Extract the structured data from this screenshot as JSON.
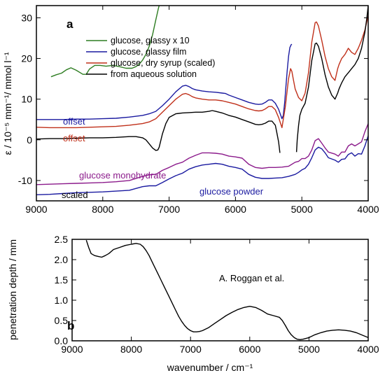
{
  "chart_data": [
    {
      "type": "line",
      "panel_label": "a",
      "ylabel": "ε  /  10⁻⁵ mm⁻¹/ mmol l⁻¹",
      "xlim": [
        9000,
        4000
      ],
      "ylim": [
        -15,
        33
      ],
      "x_ticks": [
        9000,
        8000,
        7000,
        6000,
        5000,
        4000
      ],
      "y_ticks": [
        -10,
        0,
        10,
        20,
        30
      ],
      "legend": {
        "placement": "top-left",
        "entries": [
          {
            "label": "glucose, glassy  x 10",
            "color": "#2e7d22"
          },
          {
            "label": "glucose, glassy film",
            "color": "#1a1aa0"
          },
          {
            "label": "glucose, dry syrup (scaled)",
            "color": "#c0301a"
          },
          {
            "label": "from aqueous solution",
            "color": "#000000"
          }
        ]
      },
      "annotations": [
        {
          "text": "offset",
          "color": "#1a1aa0"
        },
        {
          "text": "offset",
          "color": "#c0301a"
        },
        {
          "text": "glucose monohydrate",
          "color": "#8b1a8b"
        },
        {
          "text": "scaled",
          "color": "#000000"
        },
        {
          "text": "glucose powder",
          "color": "#1a1aa0"
        }
      ],
      "series": [
        {
          "name": "glucose, glassy  x 10",
          "color": "#2e7d22",
          "x": [
            8780,
            8700,
            8620,
            8550,
            8480,
            8400,
            8300,
            8250,
            8200,
            8120,
            8040,
            7950,
            7850,
            7750,
            7650,
            7560,
            7500,
            7450,
            7400,
            7350,
            7300,
            7250,
            7200,
            7160,
            7150
          ],
          "y": [
            15.5,
            16,
            16.4,
            17.2,
            17.7,
            17.1,
            16.1,
            16.1,
            17.4,
            18.3,
            18.3,
            18.1,
            18.3,
            18.0,
            17.6,
            17.6,
            18.0,
            18.6,
            19.6,
            21.0,
            23.0,
            25.8,
            29.5,
            32.4,
            33
          ]
        },
        {
          "name": "glucose, glassy film",
          "color": "#1a1aa0",
          "x": [
            9000,
            8800,
            8600,
            8400,
            8200,
            8000,
            7800,
            7600,
            7400,
            7300,
            7200,
            7100,
            7000,
            6900,
            6800,
            6750,
            6700,
            6650,
            6600,
            6500,
            6400,
            6300,
            6200,
            6150,
            6100,
            6000,
            5900,
            5800,
            5700,
            5650,
            5600,
            5550,
            5500,
            5450,
            5400,
            5350,
            5300,
            5280,
            5260,
            5240,
            5220,
            5200,
            5180,
            5160,
            5150
          ],
          "y": [
            5,
            5,
            5,
            5.1,
            5.1,
            5.2,
            5.3,
            5.6,
            6.0,
            6.4,
            7.0,
            8.4,
            10.0,
            11.8,
            13.2,
            13.4,
            13.1,
            12.6,
            12.3,
            12.0,
            11.8,
            11.7,
            11.5,
            11.4,
            11.0,
            10.4,
            9.8,
            9.2,
            8.8,
            8.7,
            8.8,
            9.2,
            9.8,
            9.8,
            9.0,
            7.5,
            5.2,
            6.0,
            9.0,
            13.0,
            17.0,
            20.5,
            22.7,
            23.4,
            23.5
          ]
        },
        {
          "name": "glucose, dry syrup (scaled)",
          "color": "#c0301a",
          "x": [
            9000,
            8800,
            8600,
            8400,
            8200,
            8000,
            7800,
            7600,
            7400,
            7300,
            7200,
            7100,
            7000,
            6900,
            6800,
            6750,
            6700,
            6650,
            6600,
            6500,
            6400,
            6300,
            6200,
            6100,
            6000,
            5900,
            5800,
            5700,
            5650,
            5600,
            5550,
            5500,
            5450,
            5400,
            5350,
            5300,
            5250,
            5200,
            5170,
            5150,
            5130,
            5100,
            5050,
            5000,
            4950,
            4900,
            4850,
            4800,
            4780,
            4750,
            4700,
            4650,
            4600,
            4550,
            4500,
            4460,
            4440,
            4400,
            4350,
            4300,
            4250,
            4200,
            4150,
            4100,
            4050,
            4000
          ],
          "y": [
            3.1,
            3.0,
            3.0,
            3.0,
            3.1,
            3.2,
            3.3,
            3.6,
            4.0,
            4.4,
            5.2,
            6.8,
            8.4,
            10.0,
            11.2,
            11.4,
            11.1,
            10.6,
            10.3,
            10.0,
            9.8,
            9.8,
            9.6,
            9.2,
            8.8,
            8.2,
            7.6,
            7.2,
            7.1,
            7.2,
            7.6,
            8.2,
            8.2,
            7.4,
            5.5,
            3.0,
            8.0,
            15.0,
            17.5,
            16.8,
            15.0,
            12.5,
            10.4,
            9.6,
            11.5,
            16.5,
            24.0,
            28.8,
            29.0,
            28.0,
            24.5,
            20.5,
            17.5,
            15.5,
            14.6,
            17.5,
            18.5,
            20.0,
            21.0,
            22.5,
            21.5,
            21.0,
            22.5,
            24.5,
            27.0,
            30.5
          ]
        },
        {
          "name": "from aqueous solution",
          "color": "#000000",
          "x": [
            9000,
            8800,
            8600,
            8400,
            8200,
            8000,
            7800,
            7600,
            7500,
            7400,
            7350,
            7300,
            7250,
            7200,
            7170,
            7150,
            7100,
            7050,
            7000,
            6900,
            6800,
            6700,
            6600,
            6500,
            6400,
            6350,
            6300,
            6200,
            6100,
            6000,
            5900,
            5800,
            5700,
            5650,
            5600,
            5550,
            5500,
            5450,
            5400,
            5380,
            5350,
            5330
          ],
          "y": [
            0.2,
            0.3,
            0.3,
            0.4,
            0.5,
            0.5,
            0.6,
            0.8,
            0.8,
            0.5,
            0.0,
            -1.0,
            -2.0,
            -2.6,
            -2.5,
            -1.8,
            1.5,
            4.0,
            5.5,
            6.4,
            6.6,
            6.7,
            6.8,
            6.8,
            7.0,
            7.2,
            7.0,
            6.6,
            6.0,
            5.6,
            5.0,
            4.4,
            3.8,
            3.7,
            3.8,
            4.1,
            4.6,
            4.6,
            3.6,
            2.0,
            -0.5,
            -3.2
          ]
        },
        {
          "name": "from aqueous solution",
          "color": "#000000",
          "x": [
            5080,
            5070,
            5050,
            5030,
            5000,
            4950,
            4900,
            4850,
            4800,
            4780,
            4750,
            4700,
            4650,
            4600,
            4550,
            4500,
            4460,
            4440,
            4400,
            4350,
            4300,
            4250,
            4200,
            4150,
            4100,
            4050,
            4020,
            4000
          ],
          "y": [
            -3.0,
            0.0,
            3.5,
            6.0,
            7.5,
            9.0,
            13.0,
            19.5,
            23.6,
            23.8,
            23.0,
            20.0,
            16.0,
            13.0,
            11.0,
            10.0,
            11.5,
            12.5,
            14.0,
            15.5,
            16.5,
            17.5,
            18.5,
            20.0,
            22.5,
            26.5,
            30.0,
            33.0
          ]
        },
        {
          "name": "glucose monohydrate",
          "color": "#8b1a8b",
          "x": [
            9000,
            8800,
            8600,
            8400,
            8200,
            8000,
            7800,
            7600,
            7400,
            7300,
            7200,
            7100,
            7000,
            6900,
            6800,
            6700,
            6600,
            6500,
            6400,
            6300,
            6200,
            6100,
            6000,
            5900,
            5800,
            5700,
            5600,
            5500,
            5400,
            5300,
            5200,
            5100,
            5050,
            5000,
            4950,
            4900,
            4850,
            4800,
            4750,
            4700,
            4650,
            4600,
            4500,
            4450,
            4400,
            4350,
            4300,
            4250,
            4200,
            4150,
            4100,
            4050,
            4000
          ],
          "y": [
            -11.0,
            -10.9,
            -10.8,
            -10.7,
            -10.6,
            -10.5,
            -10.3,
            -10.0,
            -9.0,
            -8.6,
            -8.5,
            -7.5,
            -6.8,
            -6.0,
            -5.5,
            -4.5,
            -3.8,
            -3.2,
            -3.2,
            -3.3,
            -3.5,
            -4.0,
            -4.2,
            -4.5,
            -6.0,
            -6.8,
            -7.0,
            -6.8,
            -6.8,
            -6.7,
            -6.5,
            -5.5,
            -5.3,
            -4.6,
            -4.6,
            -4.0,
            -2.5,
            -0.2,
            0.3,
            -0.8,
            -2.0,
            -3.0,
            -3.5,
            -4.0,
            -3.0,
            -3.0,
            -1.5,
            -1.0,
            -1.5,
            -1.0,
            -0.5,
            2.0,
            4.0
          ]
        },
        {
          "name": "glucose powder",
          "color": "#1a1aa0",
          "x": [
            9000,
            8800,
            8600,
            8400,
            8200,
            8000,
            7800,
            7600,
            7400,
            7300,
            7200,
            7100,
            7000,
            6900,
            6800,
            6700,
            6600,
            6500,
            6400,
            6300,
            6200,
            6100,
            6000,
            5900,
            5800,
            5700,
            5600,
            5500,
            5400,
            5300,
            5200,
            5100,
            5050,
            5000,
            4950,
            4900,
            4850,
            4800,
            4750,
            4700,
            4650,
            4600,
            4500,
            4450,
            4400,
            4350,
            4300,
            4250,
            4200,
            4150,
            4100,
            4050,
            4000
          ],
          "y": [
            -13.5,
            -13.4,
            -13.2,
            -13.0,
            -12.9,
            -12.8,
            -12.6,
            -12.4,
            -11.5,
            -11.3,
            -11.3,
            -10.5,
            -9.6,
            -8.8,
            -8.2,
            -7.2,
            -6.6,
            -6.2,
            -6.0,
            -5.8,
            -6.0,
            -6.5,
            -6.8,
            -7.2,
            -8.5,
            -9.2,
            -9.5,
            -9.5,
            -9.4,
            -9.3,
            -9.0,
            -8.5,
            -8.0,
            -7.4,
            -7.0,
            -6.0,
            -4.4,
            -2.5,
            -1.8,
            -2.2,
            -3.2,
            -4.4,
            -5.0,
            -5.5,
            -4.8,
            -4.7,
            -3.6,
            -3.2,
            -4.0,
            -3.4,
            -3.5,
            -1.5,
            1.0
          ]
        }
      ]
    },
    {
      "type": "line",
      "panel_label": "b",
      "title": "",
      "annotation": "A. Roggan et al.",
      "xlabel": "wavenumber  /  cm⁻¹",
      "ylabel": "penetration depth / mm",
      "xlim": [
        9000,
        4000
      ],
      "ylim": [
        0,
        2.5
      ],
      "x_ticks": [
        9000,
        8000,
        7000,
        6000,
        5000,
        4000
      ],
      "y_ticks": [
        0.0,
        0.5,
        1.0,
        1.5,
        2.0,
        2.5
      ],
      "series": [
        {
          "name": "",
          "color": "#000000",
          "x": [
            8760,
            8720,
            8680,
            8620,
            8560,
            8500,
            8440,
            8380,
            8300,
            8200,
            8100,
            8000,
            7920,
            7850,
            7800,
            7750,
            7700,
            7650,
            7600,
            7550,
            7500,
            7450,
            7400,
            7350,
            7300,
            7250,
            7200,
            7150,
            7100,
            7050,
            7000,
            6950,
            6900,
            6850,
            6800,
            6700,
            6600,
            6500,
            6400,
            6300,
            6200,
            6100,
            6000,
            5900,
            5800,
            5700,
            5600,
            5500,
            5450,
            5400,
            5350,
            5300,
            5250,
            5200,
            5150,
            5100,
            5000,
            4900,
            4800,
            4700,
            4600,
            4500,
            4400,
            4300,
            4200,
            4100,
            4000
          ],
          "y": [
            2.48,
            2.3,
            2.15,
            2.1,
            2.08,
            2.06,
            2.1,
            2.15,
            2.25,
            2.3,
            2.35,
            2.38,
            2.4,
            2.38,
            2.32,
            2.22,
            2.1,
            1.95,
            1.8,
            1.65,
            1.5,
            1.35,
            1.2,
            1.05,
            0.9,
            0.75,
            0.6,
            0.48,
            0.38,
            0.3,
            0.25,
            0.22,
            0.22,
            0.23,
            0.25,
            0.32,
            0.42,
            0.52,
            0.62,
            0.7,
            0.77,
            0.82,
            0.85,
            0.82,
            0.75,
            0.66,
            0.62,
            0.58,
            0.5,
            0.38,
            0.25,
            0.15,
            0.08,
            0.04,
            0.03,
            0.04,
            0.08,
            0.15,
            0.2,
            0.24,
            0.26,
            0.27,
            0.26,
            0.24,
            0.2,
            0.14,
            0.08
          ]
        }
      ]
    }
  ]
}
